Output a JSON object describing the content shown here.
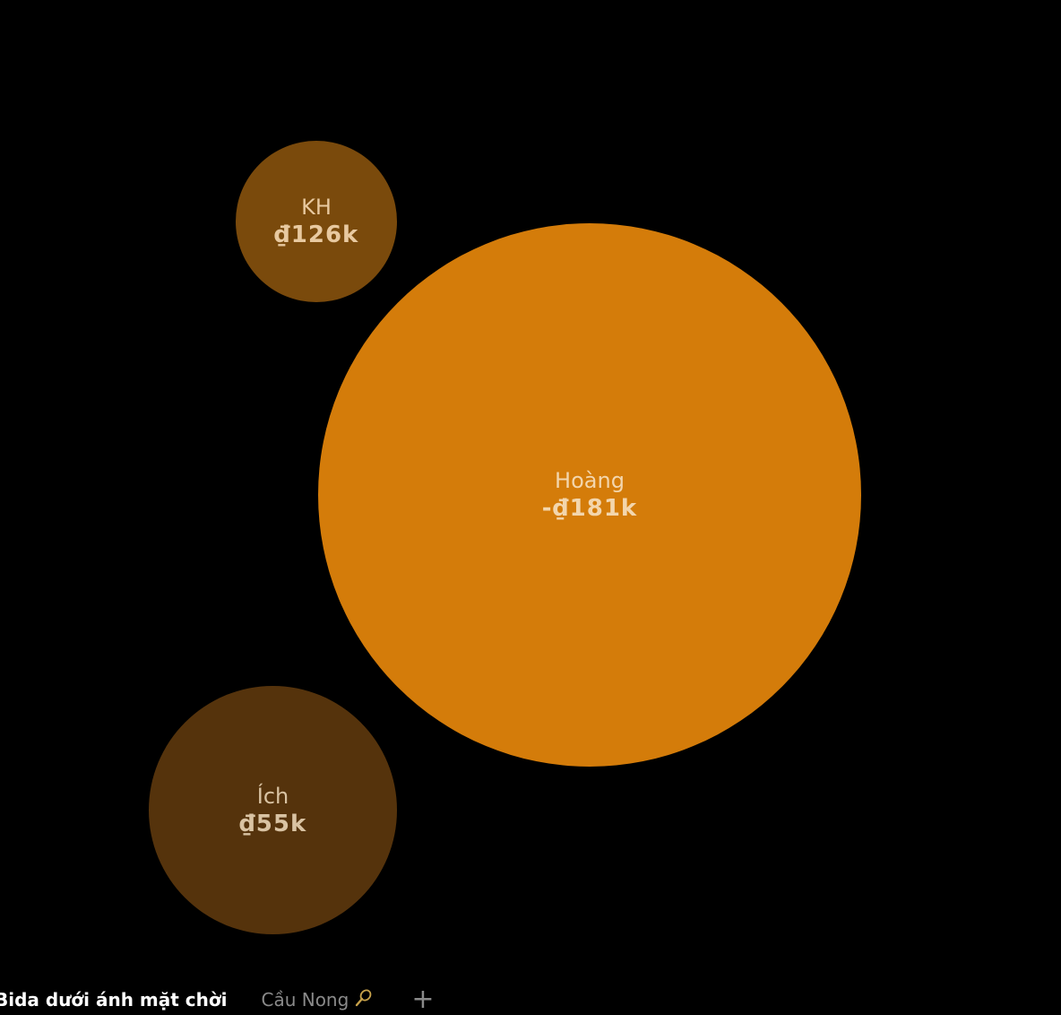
{
  "bubbles": [
    {
      "name": "KH",
      "amount": "₫126k",
      "color": "#7a4a0c",
      "text_color": "#e8c9a0"
    },
    {
      "name": "Hoàng",
      "amount": "-₫181k",
      "color": "#d47c0a",
      "text_color": "#f3d6ad"
    },
    {
      "name": "Ích",
      "amount": "₫55k",
      "color": "#55330c",
      "text_color": "#d9c3a3"
    }
  ],
  "tabs": [
    {
      "label": "Bida dưới ánh mặt chời",
      "active": true
    },
    {
      "label": "Cầu Nong",
      "icon": "badminton-racket-icon",
      "active": false
    }
  ],
  "add_tab_label": "+",
  "colors": {
    "background": "#000000",
    "active_tab_text": "#ffffff",
    "inactive_tab_text": "#8a8a8a"
  }
}
